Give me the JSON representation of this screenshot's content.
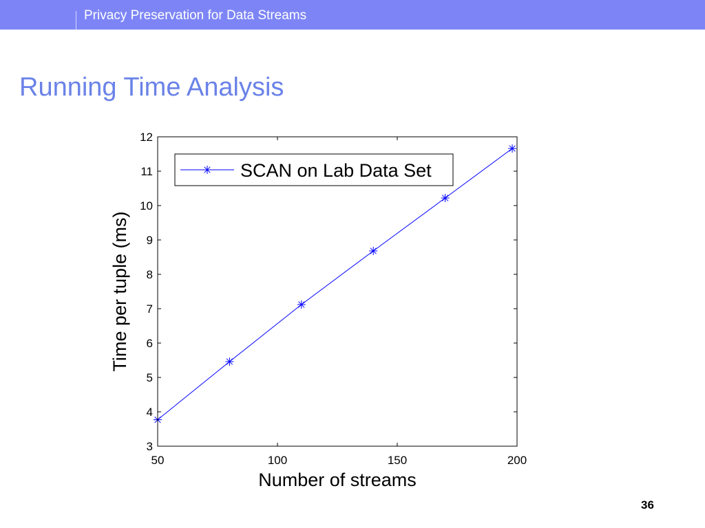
{
  "header": {
    "title": "Privacy Preservation for Data Streams"
  },
  "slide": {
    "title": "Running Time Analysis",
    "page_number": "36"
  },
  "colors": {
    "banner": "#7D85F6",
    "title": "#6A82E8",
    "series": "#0000FF"
  },
  "chart_data": {
    "type": "line",
    "x": [
      50,
      80,
      110,
      140,
      170,
      198
    ],
    "series": [
      {
        "name": "SCAN on Lab Data Set",
        "values": [
          3.77,
          5.46,
          7.12,
          8.68,
          10.22,
          11.66
        ],
        "marker": "asterisk",
        "color": "#0000FF"
      }
    ],
    "xlabel": "Number of streams",
    "ylabel": "Time per tuple (ms)",
    "xlim": [
      50,
      200
    ],
    "ylim": [
      3,
      12
    ],
    "xticks": [
      50,
      100,
      150,
      200
    ],
    "yticks": [
      3,
      4,
      5,
      6,
      7,
      8,
      9,
      10,
      11,
      12
    ],
    "grid": false,
    "legend": "top-left"
  }
}
